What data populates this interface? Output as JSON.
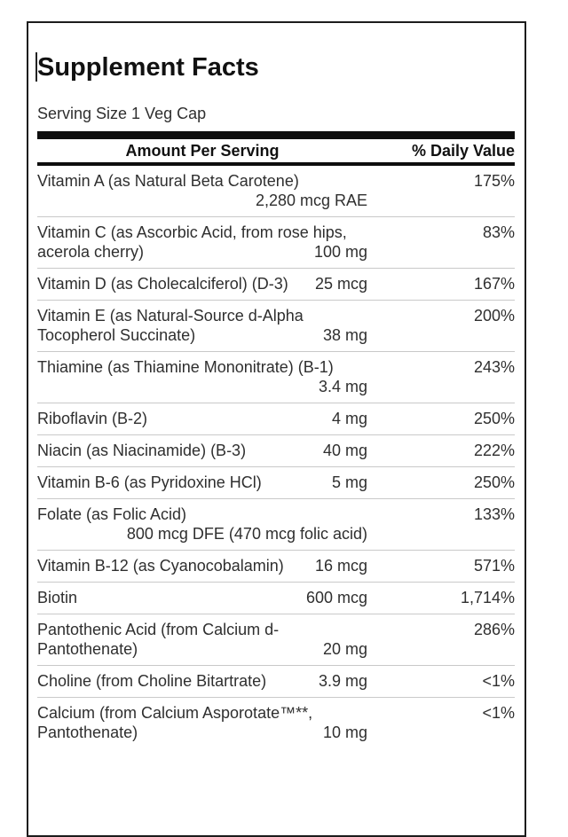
{
  "label": {
    "title": "Supplement Facts",
    "serving_size": "Serving Size 1 Veg Cap",
    "header": {
      "amount_col": "Amount Per Serving",
      "dv_col": "% Daily Value"
    },
    "rows": [
      {
        "name": "Vitamin A (as Natural Beta Carotene)",
        "amount": "2,280 mcg RAE",
        "dv": "175%"
      },
      {
        "name": "Vitamin C (as Ascorbic Acid, from rose hips, acerola cherry)",
        "amount": "100 mg",
        "dv": "83%"
      },
      {
        "name": "Vitamin D (as Cholecalciferol) (D-3)",
        "amount": "25 mcg",
        "dv": "167%"
      },
      {
        "name": "Vitamin E (as Natural-Source d-Alpha Tocopherol Succinate)",
        "amount": "38 mg",
        "dv": "200%"
      },
      {
        "name": "Thiamine (as Thiamine Mononitrate) (B-1)",
        "amount": "3.4 mg",
        "dv": "243%"
      },
      {
        "name": "Riboflavin (B-2)",
        "amount": "4 mg",
        "dv": "250%"
      },
      {
        "name": "Niacin (as Niacinamide) (B-3)",
        "amount": "40 mg",
        "dv": "222%"
      },
      {
        "name": "Vitamin B-6 (as Pyridoxine HCl)",
        "amount": "5 mg",
        "dv": "250%"
      },
      {
        "name": "Folate (as Folic Acid)",
        "amount": "800 mcg DFE (470 mcg folic acid)",
        "dv": "133%"
      },
      {
        "name": "Vitamin B-12 (as Cyanocobalamin)",
        "amount": "16 mcg",
        "dv": "571%"
      },
      {
        "name": "Biotin",
        "amount": "600 mcg",
        "dv": "1,714%"
      },
      {
        "name": "Pantothenic Acid (from Calcium d-Pantothenate)",
        "amount": "20 mg",
        "dv": "286%"
      },
      {
        "name": "Choline (from Choline Bitartrate)",
        "amount": "3.9 mg",
        "dv": "<1%"
      },
      {
        "name": "Calcium (from Calcium Asporotate™**, Pantothenate)",
        "amount": "10 mg",
        "dv": "<1%"
      }
    ],
    "colors": {
      "border": "#1c1c1c",
      "bar": "#0e0e0e",
      "divider": "#c9c9c9",
      "heading_text": "#111111",
      "body_text": "#2f2f2f",
      "background": "#ffffff"
    }
  }
}
